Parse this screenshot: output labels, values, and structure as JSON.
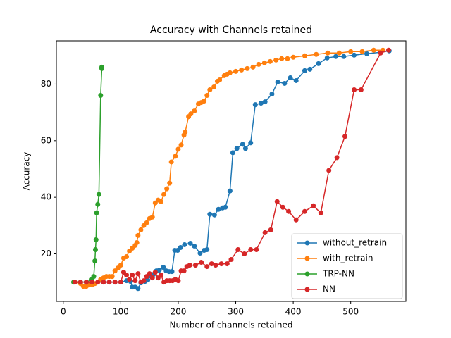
{
  "chart_data": {
    "type": "line",
    "title": "Accuracy with Channels retained",
    "x_label": "Number of channels retained",
    "y_label": "Accuracy",
    "xlim": [
      -12,
      596
    ],
    "ylim": [
      3.2,
      95.3
    ],
    "xticks": [
      0,
      100,
      200,
      300,
      400,
      500
    ],
    "yticks": [
      20,
      40,
      60,
      80
    ],
    "legend": "lower right",
    "series": [
      {
        "name": "without_retrain",
        "color": "#1f77b4",
        "x": [
          20,
          30,
          40,
          50,
          60,
          70,
          80,
          90,
          100,
          110,
          117,
          120,
          125,
          130,
          135,
          142,
          147,
          152,
          157,
          162,
          167,
          174,
          179,
          184,
          189,
          194,
          199,
          204,
          211,
          221,
          228,
          238,
          245,
          250,
          255,
          263,
          270,
          277,
          282,
          290,
          295,
          302,
          312,
          317,
          326,
          334,
          344,
          351,
          363,
          373,
          385,
          395,
          405,
          420,
          429,
          444,
          459,
          474,
          488,
          506,
          528,
          552,
          567
        ],
        "values": [
          10,
          10,
          10,
          10,
          10,
          10,
          10,
          10,
          10,
          10.5,
          10.25,
          8.25,
          8.25,
          7.75,
          9.75,
          10.25,
          10.75,
          12.25,
          12.75,
          14,
          14.25,
          15.25,
          14,
          13.75,
          13.75,
          21.25,
          21.25,
          22.25,
          23.25,
          23.75,
          22.75,
          20.25,
          21.25,
          21.5,
          34,
          33.75,
          35.75,
          36.25,
          36.5,
          42.25,
          55.75,
          57.25,
          58.75,
          57.25,
          59.25,
          72.75,
          73.25,
          73.75,
          76.5,
          80.75,
          80.25,
          82.25,
          81.25,
          84.75,
          85.25,
          87.25,
          89.25,
          89.75,
          89.75,
          90.25,
          90.75,
          91.25,
          91.75
        ]
      },
      {
        "name": "with_retrain",
        "color": "#ff7f0e",
        "x": [
          20,
          30,
          35,
          40,
          45,
          50,
          55,
          60,
          65,
          70,
          75,
          80,
          85,
          90,
          95,
          100,
          105,
          110,
          115,
          120,
          125,
          128,
          130,
          135,
          140,
          145,
          150,
          155,
          160,
          165,
          170,
          175,
          180,
          185,
          188,
          195,
          200,
          205,
          210,
          212,
          218,
          222,
          228,
          235,
          240,
          245,
          250,
          255,
          262,
          268,
          272,
          280,
          285,
          290,
          300,
          310,
          320,
          330,
          340,
          350,
          360,
          370,
          380,
          390,
          400,
          420,
          440,
          460,
          480,
          500,
          520,
          540,
          556
        ],
        "values": [
          10,
          9.5,
          8.5,
          8.5,
          9,
          9,
          9.5,
          10,
          11,
          11.5,
          12,
          12,
          12,
          14,
          15,
          16,
          18.5,
          19,
          21,
          22,
          23,
          24,
          26.5,
          28.5,
          30,
          31,
          32.5,
          33,
          38,
          39,
          38.5,
          41,
          43,
          45,
          52.5,
          54.5,
          57,
          58.5,
          62,
          63,
          68.5,
          69.5,
          70.5,
          73,
          73.5,
          74,
          76,
          78,
          79,
          81,
          81.5,
          83,
          83.5,
          84,
          84.5,
          85,
          85.5,
          86,
          87,
          87.5,
          88,
          88.5,
          89,
          89,
          89.5,
          90,
          90.5,
          91,
          91,
          91.5,
          91.5,
          92,
          92
        ]
      },
      {
        "name": "TRP-NN",
        "color": "#2ca02c",
        "x": [
          18,
          30,
          40,
          50,
          53,
          55,
          56,
          57,
          58,
          60,
          62,
          65,
          67,
          67
        ],
        "values": [
          10,
          10,
          10,
          11,
          12,
          17.5,
          21.5,
          25,
          34.5,
          37.5,
          41,
          76,
          85.5,
          86
        ]
      },
      {
        "name": "NN",
        "color": "#d62728",
        "x": [
          20,
          30,
          40,
          50,
          60,
          70,
          80,
          90,
          100,
          105,
          110,
          115,
          120,
          125,
          130,
          135,
          140,
          145,
          150,
          155,
          160,
          165,
          170,
          175,
          180,
          185,
          190,
          195,
          200,
          205,
          210,
          215,
          220,
          230,
          240,
          250,
          258,
          265,
          275,
          285,
          292,
          304,
          315,
          326,
          336,
          351,
          361,
          372,
          382,
          392,
          405,
          420,
          435,
          448,
          462,
          476,
          490,
          506,
          518,
          552,
          566
        ],
        "values": [
          10,
          10,
          10,
          10,
          10,
          10,
          10,
          10,
          10,
          13.5,
          12.5,
          11,
          12.5,
          10.5,
          13,
          10,
          10.5,
          12,
          13,
          11.5,
          13.5,
          11.5,
          12.5,
          10,
          10.5,
          10.5,
          10.5,
          11,
          10.5,
          14,
          14,
          15.5,
          16,
          16,
          17,
          15.5,
          16.5,
          16,
          16.5,
          16.5,
          18,
          21.5,
          20,
          21.5,
          21.5,
          27.5,
          28.5,
          38.5,
          36.5,
          35,
          32,
          35,
          37,
          34.5,
          49.5,
          54,
          61.5,
          78,
          78,
          91,
          92
        ]
      }
    ]
  }
}
